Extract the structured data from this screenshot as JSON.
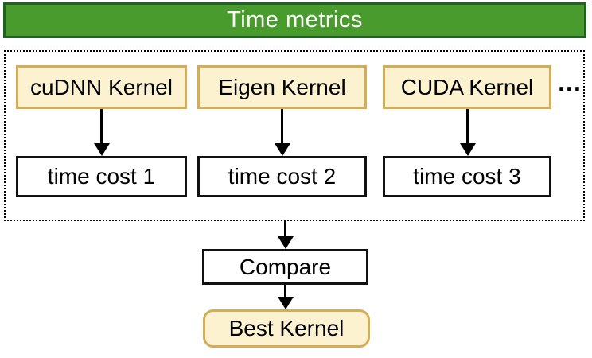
{
  "diagram": {
    "title": "Time metrics",
    "colors": {
      "banner_fill": "#4a9b2d",
      "banner_border": "#1e6420",
      "kernel_fill": "#fdf2d0",
      "kernel_border": "#d5ad55",
      "arrow": "#000000"
    },
    "kernels": [
      {
        "label": "cuDNN Kernel",
        "cost_label": "time cost 1"
      },
      {
        "label": "Eigen Kernel",
        "cost_label": "time cost 2"
      },
      {
        "label": "CUDA Kernel",
        "cost_label": "time cost 3"
      }
    ],
    "ellipsis": "...",
    "compare_label": "Compare",
    "best_label": "Best Kernel"
  }
}
